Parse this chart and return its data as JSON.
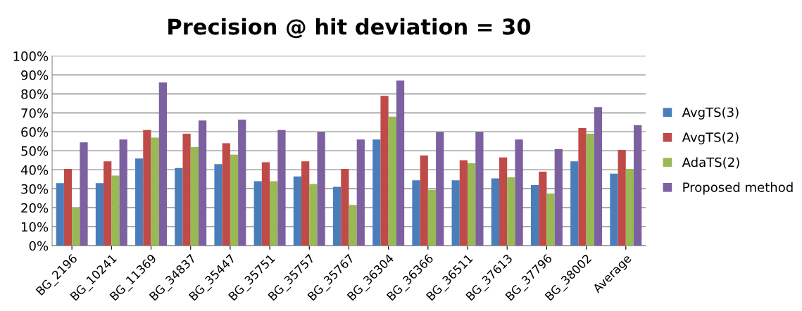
{
  "chart_data": {
    "type": "bar",
    "title": "Precision @ hit deviation = 30",
    "categories": [
      "BG_2196",
      "BG_10241",
      "BG_11369",
      "BG_34837",
      "BG_35447",
      "BG_35751",
      "BG_35757",
      "BG_35767",
      "BG_36304",
      "BG_36366",
      "BG_36511",
      "BG_37613",
      "BG_37796",
      "BG_38002",
      "Average"
    ],
    "series": [
      {
        "name": "AvgTS(3)",
        "color": "#4a7ebb",
        "values": [
          33,
          33,
          46,
          41,
          43,
          34,
          36.5,
          31,
          56,
          34.5,
          34.5,
          35.5,
          32,
          44.5,
          38
        ]
      },
      {
        "name": "AvgTS(2)",
        "color": "#be4b48",
        "values": [
          40.5,
          44.5,
          61,
          59,
          54,
          44,
          44.5,
          40.5,
          79,
          47.5,
          45,
          46.5,
          39,
          62,
          50.5
        ]
      },
      {
        "name": "AdaTS(2)",
        "color": "#98b954",
        "values": [
          20,
          37,
          57,
          52,
          48,
          34,
          32.5,
          21.5,
          68,
          29.5,
          43.5,
          36,
          27.5,
          59,
          40.5
        ]
      },
      {
        "name": "Proposed method",
        "color": "#7d60a0",
        "values": [
          54.5,
          56,
          86,
          66,
          66.5,
          61,
          60,
          56,
          87,
          60,
          60,
          56,
          51,
          73,
          63.5
        ]
      }
    ],
    "ylim": [
      0,
      100
    ],
    "yticks": [
      {
        "value": 0,
        "label": "0%"
      },
      {
        "value": 10,
        "label": "10%"
      },
      {
        "value": 20,
        "label": "20%"
      },
      {
        "value": 30,
        "label": "30%"
      },
      {
        "value": 40,
        "label": "40%"
      },
      {
        "value": 50,
        "label": "50%"
      },
      {
        "value": 60,
        "label": "60%"
      },
      {
        "value": 70,
        "label": "70%"
      },
      {
        "value": 80,
        "label": "80%"
      },
      {
        "value": 90,
        "label": "90%"
      },
      {
        "value": 100,
        "label": "100%"
      }
    ],
    "grid": "y",
    "legend": "right"
  }
}
